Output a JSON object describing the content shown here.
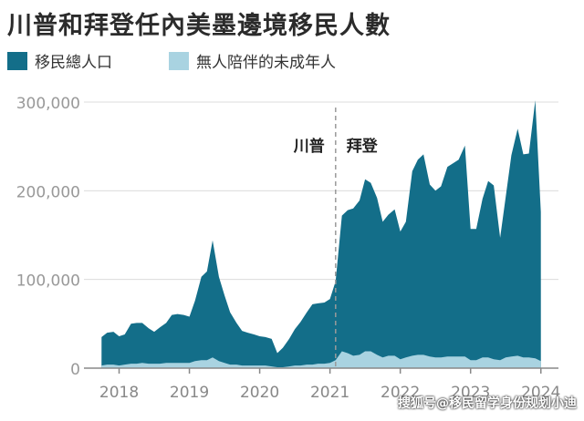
{
  "title": "川普和拜登任內美墨邊境移民人數",
  "colors": {
    "series1": "#136e89",
    "series2": "#a9d3e1",
    "axis": "#888888",
    "grid": "#dcdcdc",
    "divider": "#9a9a9a"
  },
  "legend": [
    {
      "label": "移民總人口",
      "color": "#136e89"
    },
    {
      "label": "無人陪伴的未成年人",
      "color": "#a9d3e1"
    }
  ],
  "annotations": {
    "left": "川普",
    "right": "拜登"
  },
  "watermark": "搜狐号@移民留学身份规划小迪",
  "chart_data": {
    "type": "area",
    "title": "川普和拜登任內美墨邊境移民人數",
    "ylim": [
      0,
      300000
    ],
    "xlim": [
      2017.5,
      2024.25
    ],
    "y_ticks": [
      0,
      100000,
      200000,
      300000
    ],
    "y_tick_labels": [
      "0",
      "100,000",
      "200,000",
      "300,000"
    ],
    "x_ticks": [
      2018,
      2019,
      2020,
      2021,
      2022,
      2023,
      2024
    ],
    "x_tick_labels": [
      "2018",
      "2019",
      "2020",
      "2021",
      "2022",
      "2023",
      "2024"
    ],
    "divider_x": 2021.08,
    "grid": true,
    "series": [
      {
        "name": "移民總人口",
        "x": [
          2017.75,
          2017.83,
          2017.92,
          2018.0,
          2018.08,
          2018.17,
          2018.25,
          2018.33,
          2018.42,
          2018.5,
          2018.58,
          2018.67,
          2018.75,
          2018.83,
          2018.92,
          2019.0,
          2019.08,
          2019.17,
          2019.25,
          2019.33,
          2019.42,
          2019.5,
          2019.58,
          2019.67,
          2019.75,
          2019.83,
          2019.92,
          2020.0,
          2020.08,
          2020.17,
          2020.25,
          2020.33,
          2020.42,
          2020.5,
          2020.58,
          2020.67,
          2020.75,
          2020.83,
          2020.92,
          2021.0,
          2021.08,
          2021.17,
          2021.25,
          2021.33,
          2021.42,
          2021.5,
          2021.58,
          2021.67,
          2021.75,
          2021.83,
          2021.92,
          2022.0,
          2022.08,
          2022.17,
          2022.25,
          2022.33,
          2022.42,
          2022.5,
          2022.58,
          2022.67,
          2022.75,
          2022.83,
          2022.92,
          2023.0,
          2023.08,
          2023.17,
          2023.25,
          2023.33,
          2023.42,
          2023.5,
          2023.58,
          2023.67,
          2023.75,
          2023.83,
          2023.92,
          2024.0
        ],
        "values": [
          35000,
          40000,
          41000,
          36000,
          38000,
          50000,
          51000,
          51000,
          45000,
          41000,
          46000,
          51000,
          60000,
          61000,
          60000,
          58000,
          76000,
          103000,
          109000,
          144000,
          103000,
          82000,
          63000,
          51000,
          42000,
          40000,
          38000,
          36000,
          35000,
          33000,
          17000,
          23000,
          33000,
          44000,
          52000,
          63000,
          72000,
          73000,
          74000,
          78000,
          98000,
          172000,
          178000,
          180000,
          189000,
          213000,
          209000,
          192000,
          165000,
          173000,
          179000,
          154000,
          165000,
          222000,
          235000,
          241000,
          207000,
          200000,
          205000,
          227000,
          231000,
          235000,
          251000,
          157000,
          157000,
          191000,
          211000,
          206000,
          147000,
          193000,
          240000,
          270000,
          241000,
          242000,
          302000,
          176000
        ]
      },
      {
        "name": "無人陪伴的未成年人",
        "x": [
          2017.75,
          2017.83,
          2017.92,
          2018.0,
          2018.08,
          2018.17,
          2018.25,
          2018.33,
          2018.42,
          2018.5,
          2018.58,
          2018.67,
          2018.75,
          2018.83,
          2018.92,
          2019.0,
          2019.08,
          2019.17,
          2019.25,
          2019.33,
          2019.42,
          2019.5,
          2019.58,
          2019.67,
          2019.75,
          2019.83,
          2019.92,
          2020.0,
          2020.08,
          2020.17,
          2020.25,
          2020.33,
          2020.42,
          2020.5,
          2020.58,
          2020.67,
          2020.75,
          2020.83,
          2020.92,
          2021.0,
          2021.08,
          2021.17,
          2021.25,
          2021.33,
          2021.42,
          2021.5,
          2021.58,
          2021.67,
          2021.75,
          2021.83,
          2021.92,
          2022.0,
          2022.08,
          2022.17,
          2022.25,
          2022.33,
          2022.42,
          2022.5,
          2022.58,
          2022.67,
          2022.75,
          2022.83,
          2022.92,
          2023.0,
          2023.08,
          2023.17,
          2023.25,
          2023.33,
          2023.42,
          2023.5,
          2023.58,
          2023.67,
          2023.75,
          2023.83,
          2023.92,
          2024.0
        ],
        "values": [
          3000,
          4000,
          4000,
          3000,
          4000,
          5000,
          5000,
          6000,
          5000,
          5000,
          5000,
          6000,
          6000,
          6000,
          6000,
          6000,
          8000,
          9000,
          9000,
          12000,
          8000,
          6000,
          4000,
          4000,
          3000,
          3000,
          3000,
          3000,
          3000,
          2000,
          1000,
          1000,
          2000,
          3000,
          3000,
          4000,
          4000,
          5000,
          5000,
          6000,
          9000,
          19000,
          17000,
          14000,
          15000,
          19000,
          19000,
          15000,
          12000,
          14000,
          14000,
          10000,
          12000,
          14000,
          15000,
          15000,
          13000,
          12000,
          12000,
          13000,
          13000,
          13000,
          13000,
          9000,
          9000,
          12000,
          12000,
          10000,
          9000,
          12000,
          13000,
          14000,
          12000,
          12000,
          11000,
          8000
        ]
      }
    ]
  }
}
